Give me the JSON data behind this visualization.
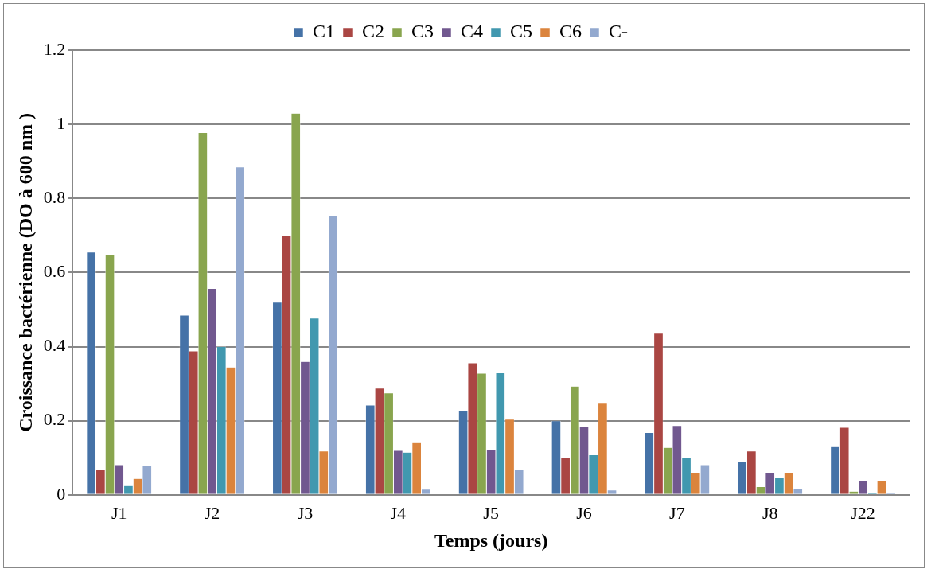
{
  "chart_data": {
    "type": "bar",
    "xlabel": "Temps (jours)",
    "ylabel": "Croissance bactérienne (DO à 600 nm )",
    "categories": [
      "J1",
      "J2",
      "J3",
      "J4",
      "J5",
      "J6",
      "J7",
      "J8",
      "J22"
    ],
    "series": [
      {
        "name": "C1",
        "color": "#4572a7",
        "values": [
          0.655,
          0.485,
          0.52,
          0.242,
          0.227,
          0.2,
          0.168,
          0.089,
          0.13
        ]
      },
      {
        "name": "C2",
        "color": "#aa4643",
        "values": [
          0.068,
          0.388,
          0.7,
          0.288,
          0.356,
          0.1,
          0.436,
          0.118,
          0.182
        ]
      },
      {
        "name": "C3",
        "color": "#89a54e",
        "values": [
          0.647,
          0.978,
          1.03,
          0.275,
          0.328,
          0.293,
          0.128,
          0.022,
          0.01
        ]
      },
      {
        "name": "C4",
        "color": "#71588f",
        "values": [
          0.081,
          0.557,
          0.36,
          0.12,
          0.121,
          0.184,
          0.187,
          0.061,
          0.039
        ]
      },
      {
        "name": "C5",
        "color": "#4198af",
        "values": [
          0.025,
          0.4,
          0.477,
          0.115,
          0.329,
          0.108,
          0.101,
          0.046,
          0.006
        ]
      },
      {
        "name": "C6",
        "color": "#db843d",
        "values": [
          0.044,
          0.345,
          0.118,
          0.141,
          0.204,
          0.247,
          0.061,
          0.061,
          0.038
        ]
      },
      {
        "name": "C-",
        "color": "#93a9cf",
        "values": [
          0.078,
          0.885,
          0.752,
          0.015,
          0.068,
          0.013,
          0.081,
          0.016,
          0.007
        ]
      }
    ],
    "ylim": [
      0,
      1.2
    ],
    "yticks": [
      0,
      0.2,
      0.4,
      0.6,
      0.8,
      1,
      1.2
    ],
    "grid": "y",
    "legend": "top"
  }
}
